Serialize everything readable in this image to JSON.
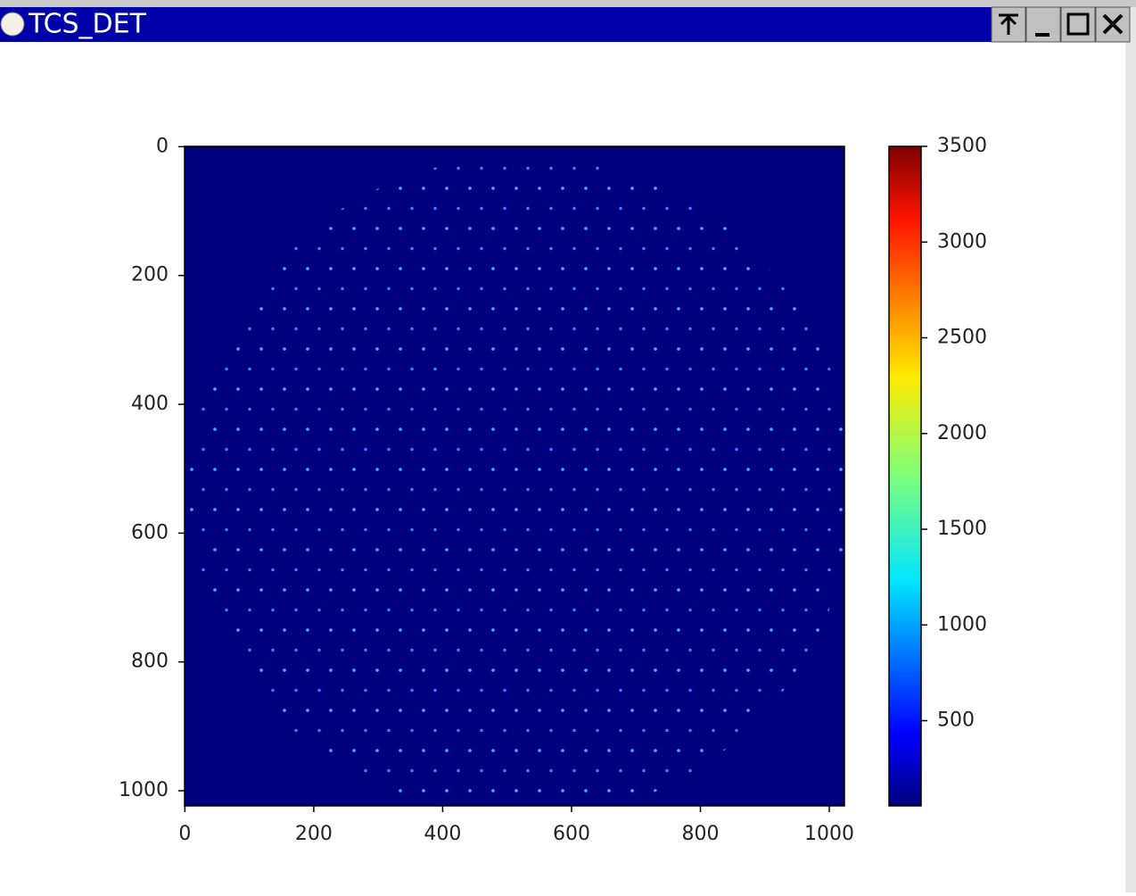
{
  "window": {
    "title": "TCS_DET"
  },
  "chart_data": {
    "type": "image",
    "cmap": "jet",
    "xlim": [
      -0.5,
      1023.5
    ],
    "ylim": [
      1023.5,
      -0.5
    ],
    "xticks": [
      0,
      200,
      400,
      600,
      800,
      1000
    ],
    "yticks": [
      0,
      200,
      400,
      600,
      800,
      1000
    ],
    "clim": [
      55,
      3500
    ],
    "cticks": [
      500,
      1000,
      1500,
      2000,
      2500,
      3000,
      3500
    ]
  }
}
